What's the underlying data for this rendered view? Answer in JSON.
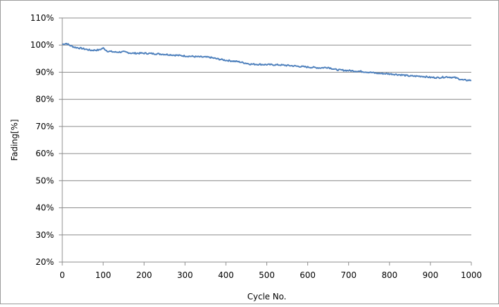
{
  "chart_data": {
    "type": "line",
    "title": "",
    "xlabel": "Cycle No.",
    "ylabel": "Fading[%]",
    "xlim": [
      0,
      1000
    ],
    "ylim": [
      20,
      110
    ],
    "x_ticks": [
      0,
      100,
      200,
      300,
      400,
      500,
      600,
      700,
      800,
      900,
      1000
    ],
    "x_tick_labels": [
      "0",
      "100",
      "200",
      "300",
      "400",
      "500",
      "600",
      "700",
      "800",
      "900",
      "1000"
    ],
    "y_ticks": [
      20,
      30,
      40,
      50,
      60,
      70,
      80,
      90,
      100,
      110
    ],
    "y_tick_labels": [
      "20%",
      "30%",
      "40%",
      "50%",
      "60%",
      "70%",
      "80%",
      "90%",
      "100%",
      "110%"
    ],
    "grid": "horizontal",
    "legend": "none",
    "series_color": "#4F81BD",
    "series": [
      {
        "x": [
          0,
          10,
          20,
          30,
          50,
          70,
          90,
          100,
          110,
          130,
          150,
          170,
          200,
          230,
          260,
          300,
          330,
          360,
          380,
          400,
          430,
          460,
          480,
          500,
          530,
          560,
          600,
          630,
          650,
          670,
          700,
          730,
          750,
          770,
          800,
          830,
          850,
          880,
          900,
          920,
          940,
          960,
          980,
          1000
        ],
        "y": [
          100.3,
          100.6,
          99.8,
          99.2,
          98.7,
          98.1,
          98.2,
          98.9,
          97.8,
          97.4,
          97.5,
          97.0,
          97.0,
          96.8,
          96.5,
          96.0,
          95.7,
          95.5,
          94.9,
          94.4,
          93.9,
          93.0,
          92.9,
          92.8,
          92.7,
          92.4,
          91.9,
          91.6,
          91.8,
          90.9,
          90.6,
          90.3,
          90.0,
          89.6,
          89.4,
          89.0,
          88.6,
          88.5,
          88.1,
          88.0,
          88.3,
          88.0,
          87.1,
          87.0
        ]
      }
    ]
  }
}
